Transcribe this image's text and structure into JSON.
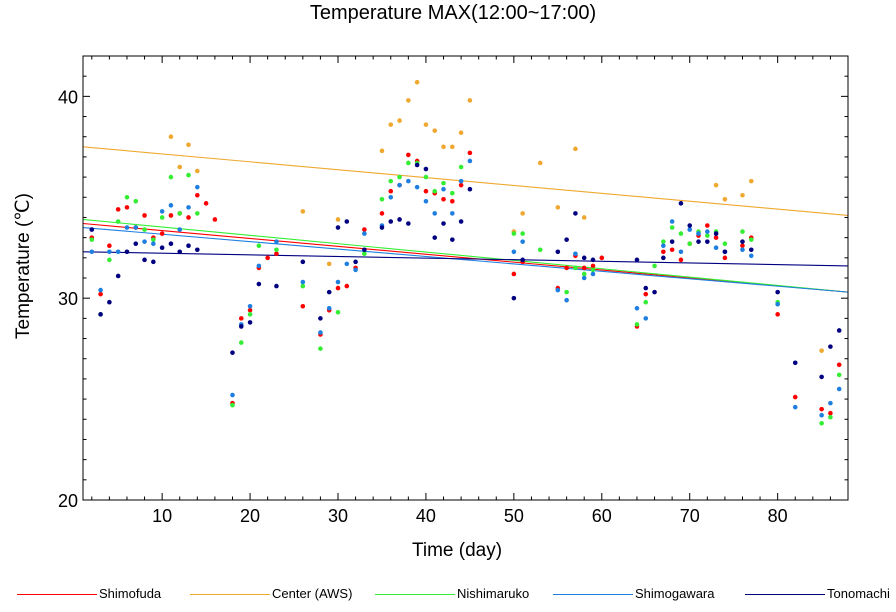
{
  "chart_data": {
    "type": "scatter",
    "title": "Temperature MAX(12:00~17:00)",
    "xlabel": "Time (day)",
    "ylabel": "Temperature (℃)",
    "xlim": [
      1,
      88
    ],
    "ylim": [
      20,
      42
    ],
    "xticks": [
      10,
      20,
      30,
      40,
      50,
      60,
      70,
      80
    ],
    "yticks": [
      20,
      30,
      40
    ],
    "grid": false,
    "legend_position": "bottom",
    "series": [
      {
        "name": "Shimofuda",
        "color": "#ff0000",
        "trend": [
          [
            1,
            33.7
          ],
          [
            88,
            30.3
          ]
        ],
        "points": [
          [
            2,
            33.0
          ],
          [
            3,
            30.2
          ],
          [
            4,
            32.6
          ],
          [
            5,
            34.4
          ],
          [
            6,
            34.5
          ],
          [
            7,
            33.5
          ],
          [
            8,
            34.1
          ],
          [
            9,
            33.0
          ],
          [
            10,
            33.2
          ],
          [
            11,
            34.1
          ],
          [
            12,
            34.2
          ],
          [
            13,
            34.0
          ],
          [
            14,
            35.1
          ],
          [
            15,
            34.7
          ],
          [
            16,
            33.9
          ],
          [
            18,
            24.8
          ],
          [
            19,
            29.0
          ],
          [
            20,
            29.4
          ],
          [
            21,
            31.5
          ],
          [
            22,
            32.0
          ],
          [
            23,
            32.2
          ],
          [
            26,
            29.6
          ],
          [
            28,
            28.2
          ],
          [
            29,
            29.4
          ],
          [
            30,
            30.5
          ],
          [
            31,
            30.6
          ],
          [
            32,
            31.5
          ],
          [
            33,
            33.4
          ],
          [
            35,
            34.2
          ],
          [
            36,
            35.3
          ],
          [
            37,
            35.6
          ],
          [
            38,
            37.1
          ],
          [
            39,
            36.8
          ],
          [
            40,
            35.3
          ],
          [
            41,
            35.2
          ],
          [
            42,
            34.9
          ],
          [
            43,
            34.8
          ],
          [
            44,
            35.6
          ],
          [
            45,
            37.2
          ],
          [
            50,
            31.2
          ],
          [
            51,
            31.8
          ],
          [
            55,
            30.5
          ],
          [
            56,
            31.5
          ],
          [
            57,
            32.1
          ],
          [
            58,
            31.5
          ],
          [
            59,
            31.6
          ],
          [
            60,
            32.0
          ],
          [
            64,
            28.6
          ],
          [
            65,
            30.2
          ],
          [
            67,
            32.3
          ],
          [
            68,
            32.4
          ],
          [
            69,
            31.9
          ],
          [
            70,
            32.7
          ],
          [
            71,
            33.1
          ],
          [
            72,
            33.6
          ],
          [
            73,
            33.0
          ],
          [
            74,
            32.0
          ],
          [
            76,
            32.6
          ],
          [
            77,
            33.0
          ],
          [
            80,
            29.2
          ],
          [
            82,
            25.1
          ],
          [
            85,
            24.5
          ],
          [
            86,
            24.3
          ],
          [
            87,
            26.7
          ]
        ]
      },
      {
        "name": "Center (AWS)",
        "color": "#f0a830",
        "trend": [
          [
            1,
            37.5
          ],
          [
            88,
            34.1
          ]
        ],
        "points": [
          [
            11,
            38.0
          ],
          [
            12,
            36.5
          ],
          [
            13,
            37.6
          ],
          [
            14,
            36.3
          ],
          [
            26,
            34.3
          ],
          [
            29,
            31.7
          ],
          [
            30,
            33.9
          ],
          [
            35,
            37.3
          ],
          [
            36,
            38.6
          ],
          [
            37,
            38.8
          ],
          [
            38,
            39.8
          ],
          [
            39,
            40.7
          ],
          [
            40,
            38.6
          ],
          [
            41,
            38.3
          ],
          [
            42,
            37.5
          ],
          [
            43,
            37.5
          ],
          [
            44,
            38.2
          ],
          [
            45,
            39.8
          ],
          [
            50,
            33.3
          ],
          [
            51,
            34.2
          ],
          [
            53,
            36.7
          ],
          [
            55,
            34.5
          ],
          [
            57,
            37.4
          ],
          [
            58,
            34.0
          ],
          [
            73,
            35.6
          ],
          [
            74,
            34.9
          ],
          [
            76,
            35.1
          ],
          [
            77,
            35.8
          ],
          [
            85,
            27.4
          ]
        ]
      },
      {
        "name": "Nishimaruko",
        "color": "#33ee33",
        "trend": [
          [
            1,
            33.9
          ],
          [
            88,
            30.3
          ]
        ],
        "points": [
          [
            2,
            32.9
          ],
          [
            3,
            29.2
          ],
          [
            4,
            31.9
          ],
          [
            5,
            33.8
          ],
          [
            6,
            35.0
          ],
          [
            7,
            34.8
          ],
          [
            8,
            33.4
          ],
          [
            9,
            32.9
          ],
          [
            10,
            34.0
          ],
          [
            11,
            36.0
          ],
          [
            12,
            34.2
          ],
          [
            13,
            36.1
          ],
          [
            14,
            34.2
          ],
          [
            18,
            24.7
          ],
          [
            19,
            27.8
          ],
          [
            20,
            29.2
          ],
          [
            21,
            32.6
          ],
          [
            23,
            32.4
          ],
          [
            26,
            30.6
          ],
          [
            28,
            27.5
          ],
          [
            30,
            29.3
          ],
          [
            33,
            32.2
          ],
          [
            35,
            34.9
          ],
          [
            36,
            35.8
          ],
          [
            37,
            36.0
          ],
          [
            38,
            36.7
          ],
          [
            39,
            36.7
          ],
          [
            40,
            36.0
          ],
          [
            41,
            35.3
          ],
          [
            42,
            35.7
          ],
          [
            43,
            35.2
          ],
          [
            44,
            36.5
          ],
          [
            50,
            33.2
          ],
          [
            51,
            33.2
          ],
          [
            53,
            32.4
          ],
          [
            56,
            30.3
          ],
          [
            57,
            31.5
          ],
          [
            58,
            31.2
          ],
          [
            59,
            31.4
          ],
          [
            64,
            28.7
          ],
          [
            65,
            29.8
          ],
          [
            66,
            31.6
          ],
          [
            67,
            32.8
          ],
          [
            68,
            33.5
          ],
          [
            69,
            33.2
          ],
          [
            70,
            32.7
          ],
          [
            71,
            33.3
          ],
          [
            72,
            33.1
          ],
          [
            73,
            33.3
          ],
          [
            74,
            32.7
          ],
          [
            76,
            33.3
          ],
          [
            77,
            32.9
          ],
          [
            80,
            29.8
          ],
          [
            85,
            23.8
          ],
          [
            86,
            24.1
          ],
          [
            87,
            26.2
          ]
        ]
      },
      {
        "name": "Shimogawara",
        "color": "#1e7fe0",
        "trend": [
          [
            1,
            33.5
          ],
          [
            88,
            30.3
          ]
        ],
        "points": [
          [
            2,
            32.3
          ],
          [
            3,
            30.4
          ],
          [
            4,
            32.3
          ],
          [
            5,
            32.3
          ],
          [
            6,
            33.5
          ],
          [
            7,
            33.5
          ],
          [
            8,
            32.8
          ],
          [
            9,
            32.7
          ],
          [
            10,
            34.3
          ],
          [
            11,
            34.6
          ],
          [
            12,
            33.4
          ],
          [
            13,
            34.5
          ],
          [
            14,
            35.5
          ],
          [
            18,
            25.2
          ],
          [
            19,
            28.7
          ],
          [
            20,
            29.6
          ],
          [
            21,
            31.6
          ],
          [
            23,
            32.8
          ],
          [
            26,
            30.8
          ],
          [
            28,
            28.3
          ],
          [
            29,
            29.5
          ],
          [
            30,
            30.8
          ],
          [
            31,
            31.7
          ],
          [
            32,
            31.4
          ],
          [
            33,
            33.2
          ],
          [
            35,
            33.6
          ],
          [
            36,
            35.0
          ],
          [
            37,
            35.6
          ],
          [
            38,
            35.8
          ],
          [
            39,
            35.5
          ],
          [
            40,
            34.8
          ],
          [
            41,
            34.2
          ],
          [
            42,
            35.4
          ],
          [
            43,
            34.2
          ],
          [
            44,
            35.8
          ],
          [
            45,
            36.8
          ],
          [
            50,
            32.3
          ],
          [
            51,
            32.8
          ],
          [
            55,
            30.4
          ],
          [
            56,
            29.9
          ],
          [
            57,
            32.2
          ],
          [
            58,
            31.0
          ],
          [
            59,
            31.2
          ],
          [
            64,
            29.5
          ],
          [
            65,
            29.0
          ],
          [
            67,
            32.6
          ],
          [
            68,
            33.8
          ],
          [
            69,
            32.3
          ],
          [
            70,
            33.4
          ],
          [
            71,
            33.2
          ],
          [
            72,
            33.3
          ],
          [
            73,
            32.5
          ],
          [
            74,
            32.3
          ],
          [
            76,
            32.4
          ],
          [
            77,
            32.1
          ],
          [
            80,
            29.7
          ],
          [
            82,
            24.6
          ],
          [
            85,
            24.2
          ],
          [
            86,
            24.8
          ],
          [
            87,
            25.5
          ]
        ]
      },
      {
        "name": "Tonomachi",
        "color": "#000080",
        "trend": [
          [
            1,
            32.3
          ],
          [
            88,
            31.6
          ]
        ],
        "points": [
          [
            2,
            33.4
          ],
          [
            3,
            29.2
          ],
          [
            4,
            29.8
          ],
          [
            5,
            31.1
          ],
          [
            6,
            32.3
          ],
          [
            7,
            32.7
          ],
          [
            8,
            31.9
          ],
          [
            9,
            31.8
          ],
          [
            10,
            32.5
          ],
          [
            11,
            32.7
          ],
          [
            12,
            32.3
          ],
          [
            13,
            32.6
          ],
          [
            14,
            32.4
          ],
          [
            18,
            27.3
          ],
          [
            19,
            28.6
          ],
          [
            20,
            28.8
          ],
          [
            21,
            30.7
          ],
          [
            23,
            30.6
          ],
          [
            26,
            31.8
          ],
          [
            28,
            29.0
          ],
          [
            29,
            30.3
          ],
          [
            30,
            33.5
          ],
          [
            31,
            33.8
          ],
          [
            32,
            31.8
          ],
          [
            33,
            32.4
          ],
          [
            35,
            33.5
          ],
          [
            36,
            33.8
          ],
          [
            37,
            33.9
          ],
          [
            38,
            33.7
          ],
          [
            39,
            36.6
          ],
          [
            40,
            36.4
          ],
          [
            41,
            33.0
          ],
          [
            42,
            33.7
          ],
          [
            43,
            32.9
          ],
          [
            44,
            33.8
          ],
          [
            45,
            35.4
          ],
          [
            50,
            30.0
          ],
          [
            51,
            31.9
          ],
          [
            55,
            32.3
          ],
          [
            56,
            32.9
          ],
          [
            57,
            34.2
          ],
          [
            58,
            32.0
          ],
          [
            59,
            31.9
          ],
          [
            64,
            31.9
          ],
          [
            65,
            30.5
          ],
          [
            66,
            30.3
          ],
          [
            67,
            32.0
          ],
          [
            68,
            32.8
          ],
          [
            69,
            34.7
          ],
          [
            70,
            33.6
          ],
          [
            71,
            32.8
          ],
          [
            72,
            32.8
          ],
          [
            73,
            33.2
          ],
          [
            74,
            32.3
          ],
          [
            76,
            32.8
          ],
          [
            77,
            32.4
          ],
          [
            80,
            30.3
          ],
          [
            82,
            26.8
          ],
          [
            85,
            26.1
          ],
          [
            86,
            27.6
          ],
          [
            87,
            28.4
          ]
        ]
      }
    ]
  }
}
